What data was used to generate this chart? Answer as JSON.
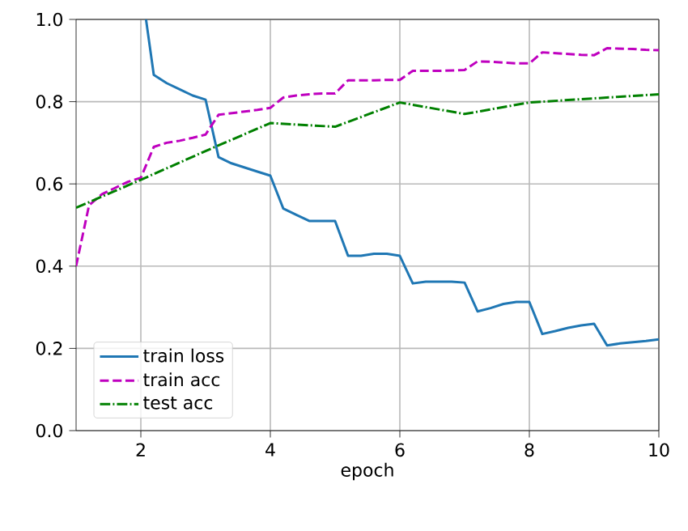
{
  "chart_data": {
    "type": "line",
    "xlabel": "epoch",
    "xlim": [
      1,
      10
    ],
    "ylim": [
      0,
      1.0
    ],
    "xticks": [
      2,
      4,
      6,
      8,
      10
    ],
    "yticks": [
      {
        "value": 0,
        "label": "0.0"
      },
      0.2,
      0.4,
      0.6,
      0.8,
      {
        "value": 1,
        "label": "1.0"
      }
    ],
    "grid": true,
    "legend": "bottom left",
    "series": [
      {
        "name": "train loss",
        "color": "#1f77b4",
        "line_style": "solid",
        "x": [
          2.08,
          2.2,
          2.4,
          2.6,
          2.8,
          3.0,
          3.2,
          3.4,
          3.6,
          3.8,
          4.0,
          4.2,
          4.4,
          4.6,
          4.8,
          5.0,
          5.2,
          5.4,
          5.6,
          5.8,
          6.0,
          6.2,
          6.4,
          6.6,
          6.8,
          7.0,
          7.2,
          7.4,
          7.6,
          7.8,
          8.0,
          8.2,
          8.4,
          8.6,
          8.8,
          9.0,
          9.2,
          9.4,
          9.6,
          9.8,
          10.0
        ],
        "values": [
          1.0,
          0.865,
          0.845,
          0.83,
          0.815,
          0.805,
          0.665,
          0.65,
          0.64,
          0.63,
          0.62,
          0.54,
          0.525,
          0.51,
          0.51,
          0.51,
          0.425,
          0.425,
          0.43,
          0.43,
          0.425,
          0.358,
          0.362,
          0.362,
          0.362,
          0.36,
          0.29,
          0.298,
          0.308,
          0.313,
          0.313,
          0.235,
          0.242,
          0.25,
          0.256,
          0.26,
          0.207,
          0.212,
          0.215,
          0.218,
          0.222
        ]
      },
      {
        "name": "train acc",
        "color": "#bf00bf",
        "line_style": "dashed",
        "x": [
          1.0,
          1.2,
          1.4,
          1.6,
          1.8,
          2.0,
          2.2,
          2.4,
          2.6,
          2.8,
          3.0,
          3.2,
          3.4,
          3.6,
          3.8,
          4.0,
          4.2,
          4.4,
          4.6,
          4.8,
          5.0,
          5.2,
          5.4,
          5.6,
          5.8,
          6.0,
          6.2,
          6.4,
          6.6,
          6.8,
          7.0,
          7.2,
          7.4,
          7.6,
          7.8,
          8.0,
          8.2,
          8.4,
          8.6,
          8.8,
          9.0,
          9.2,
          9.4,
          9.6,
          9.8,
          10.0
        ],
        "values": [
          0.4,
          0.548,
          0.575,
          0.59,
          0.605,
          0.615,
          0.69,
          0.7,
          0.705,
          0.712,
          0.72,
          0.768,
          0.772,
          0.776,
          0.78,
          0.785,
          0.81,
          0.815,
          0.818,
          0.82,
          0.82,
          0.852,
          0.852,
          0.852,
          0.853,
          0.853,
          0.875,
          0.875,
          0.875,
          0.876,
          0.877,
          0.898,
          0.897,
          0.895,
          0.893,
          0.893,
          0.92,
          0.918,
          0.916,
          0.914,
          0.913,
          0.93,
          0.929,
          0.928,
          0.926,
          0.925
        ]
      },
      {
        "name": "test acc",
        "color": "#008000",
        "line_style": "dashdot",
        "x": [
          1,
          2,
          3,
          4,
          5,
          6,
          7,
          8,
          9,
          10
        ],
        "values": [
          0.542,
          0.61,
          0.68,
          0.748,
          0.739,
          0.798,
          0.77,
          0.798,
          0.808,
          0.818
        ]
      }
    ]
  }
}
